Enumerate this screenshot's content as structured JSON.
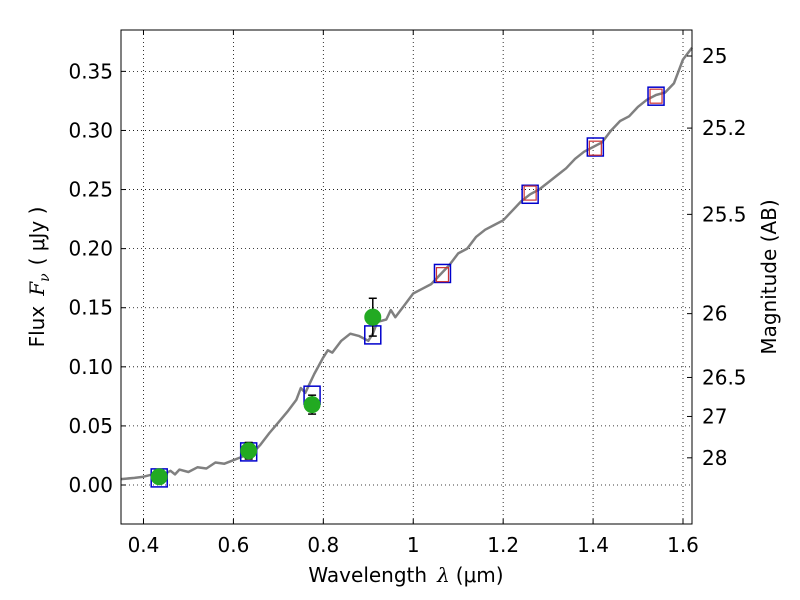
{
  "chart_data": {
    "type": "scatter",
    "xlabel": {
      "prefix": "Wavelength",
      "symbol": "λ",
      "unit": "(μm)"
    },
    "ylabel": {
      "prefix": "Flux",
      "symbol": "F",
      "subscript": "ν",
      "unit": "( μJy )"
    },
    "y2label": "Magnitude (AB)",
    "xlim": [
      0.35,
      1.62
    ],
    "ylim": [
      -0.033,
      0.385
    ],
    "grid": true,
    "x_ticks": [
      {
        "value": 0.4,
        "label": "0.4"
      },
      {
        "value": 0.6,
        "label": "0.6"
      },
      {
        "value": 0.8,
        "label": "0.8"
      },
      {
        "value": 1.0,
        "label": "1"
      },
      {
        "value": 1.2,
        "label": "1.2"
      },
      {
        "value": 1.4,
        "label": "1.4"
      },
      {
        "value": 1.6,
        "label": "1.6"
      }
    ],
    "y_ticks": [
      {
        "value": 0.0,
        "label": "0.00"
      },
      {
        "value": 0.05,
        "label": "0.05"
      },
      {
        "value": 0.1,
        "label": "0.10"
      },
      {
        "value": 0.15,
        "label": "0.15"
      },
      {
        "value": 0.2,
        "label": "0.20"
      },
      {
        "value": 0.25,
        "label": "0.25"
      },
      {
        "value": 0.3,
        "label": "0.30"
      },
      {
        "value": 0.35,
        "label": "0.35"
      }
    ],
    "mag_ticks": [
      {
        "label": "25",
        "flux": 0.363
      },
      {
        "label": "25.2",
        "flux": 0.302
      },
      {
        "label": "25.5",
        "flux": 0.229
      },
      {
        "label": "26",
        "flux": 0.145
      },
      {
        "label": "26.5",
        "flux": 0.091
      },
      {
        "label": "27",
        "flux": 0.058
      },
      {
        "label": "28",
        "flux": 0.023
      }
    ],
    "series": [
      {
        "kind": "model-spectrum",
        "color": "#808080",
        "x": [
          0.35,
          0.38,
          0.4,
          0.42,
          0.44,
          0.46,
          0.47,
          0.48,
          0.5,
          0.52,
          0.54,
          0.56,
          0.58,
          0.6,
          0.62,
          0.64,
          0.66,
          0.68,
          0.7,
          0.72,
          0.74,
          0.75,
          0.76,
          0.78,
          0.8,
          0.81,
          0.82,
          0.84,
          0.86,
          0.88,
          0.9,
          0.91,
          0.92,
          0.94,
          0.95,
          0.96,
          0.98,
          1.0,
          1.02,
          1.04,
          1.06,
          1.08,
          1.1,
          1.12,
          1.14,
          1.16,
          1.18,
          1.2,
          1.22,
          1.24,
          1.26,
          1.28,
          1.3,
          1.32,
          1.34,
          1.36,
          1.38,
          1.4,
          1.42,
          1.44,
          1.46,
          1.48,
          1.5,
          1.52,
          1.54,
          1.56,
          1.58,
          1.6,
          1.62
        ],
        "y": [
          0.005,
          0.006,
          0.007,
          0.009,
          0.008,
          0.012,
          0.009,
          0.013,
          0.011,
          0.015,
          0.014,
          0.019,
          0.018,
          0.021,
          0.024,
          0.026,
          0.034,
          0.044,
          0.053,
          0.062,
          0.072,
          0.082,
          0.078,
          0.094,
          0.108,
          0.114,
          0.112,
          0.122,
          0.128,
          0.126,
          0.122,
          0.128,
          0.138,
          0.14,
          0.148,
          0.142,
          0.152,
          0.162,
          0.166,
          0.17,
          0.178,
          0.186,
          0.196,
          0.2,
          0.21,
          0.216,
          0.22,
          0.224,
          0.232,
          0.24,
          0.246,
          0.25,
          0.256,
          0.262,
          0.268,
          0.276,
          0.282,
          0.286,
          0.29,
          0.3,
          0.308,
          0.312,
          0.32,
          0.326,
          0.33,
          0.332,
          0.34,
          0.36,
          0.37
        ]
      },
      {
        "kind": "model-photometry",
        "color": "#0000cc",
        "x": [
          0.435,
          0.634,
          0.775,
          0.91,
          1.065,
          1.26,
          1.405,
          1.54
        ],
        "y": [
          0.006,
          0.028,
          0.076,
          0.127,
          0.179,
          0.246,
          0.286,
          0.329
        ]
      },
      {
        "kind": "photometry-point",
        "color": "#cc3333",
        "x": [
          1.065,
          1.26,
          1.405,
          1.54
        ],
        "y": [
          0.178,
          0.247,
          0.285,
          0.329
        ]
      },
      {
        "kind": "observed",
        "color": "#22aa22",
        "x": [
          0.435,
          0.634,
          0.775,
          0.91
        ],
        "y": [
          0.007,
          0.029,
          0.068,
          0.142
        ],
        "err": [
          0.003,
          0.007,
          0.008,
          0.016
        ]
      }
    ]
  }
}
